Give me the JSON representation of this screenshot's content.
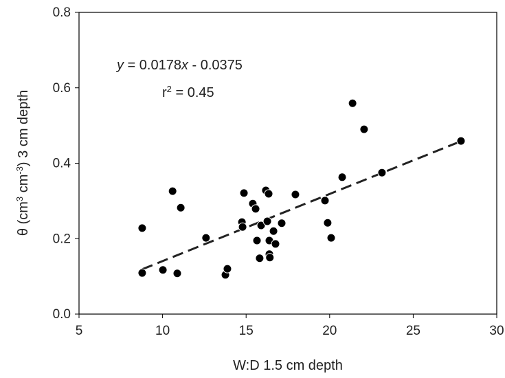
{
  "chart_data": {
    "type": "scatter",
    "x_label": "W:D 1.5 cm depth",
    "y_label_parts": [
      "θ (cm",
      "3",
      " cm",
      "-3",
      ")  3 cm depth"
    ],
    "equation_parts": [
      "y",
      " = 0.0178",
      "x",
      " - 0.0375"
    ],
    "r2_parts": [
      "r",
      "2",
      " = 0.45"
    ],
    "trendline": {
      "slope": 0.0178,
      "intercept": -0.0375
    },
    "x": [
      8.78,
      8.78,
      10.02,
      10.6,
      10.88,
      11.09,
      12.6,
      13.76,
      13.88,
      14.75,
      14.79,
      14.87,
      15.4,
      15.57,
      15.65,
      15.81,
      15.9,
      16.18,
      16.27,
      16.35,
      16.39,
      16.39,
      16.42,
      16.64,
      16.76,
      17.13,
      17.95,
      19.88,
      19.72,
      20.09,
      20.75,
      21.37,
      22.06,
      23.13,
      27.86
    ],
    "values": [
      0.228,
      0.109,
      0.117,
      0.326,
      0.108,
      0.282,
      0.202,
      0.104,
      0.12,
      0.244,
      0.231,
      0.321,
      0.293,
      0.279,
      0.195,
      0.148,
      0.235,
      0.328,
      0.246,
      0.319,
      0.195,
      0.159,
      0.15,
      0.22,
      0.186,
      0.241,
      0.317,
      0.242,
      0.301,
      0.202,
      0.363,
      0.559,
      0.49,
      0.375,
      0.459
    ],
    "color": "#000000",
    "xlim": [
      5,
      30
    ],
    "xticks": [
      5,
      10,
      15,
      20,
      25,
      30
    ],
    "ylim": [
      0,
      0.8
    ],
    "yticks": [
      {
        "value": 0,
        "label": "0.0"
      },
      0.2,
      0.4,
      0.6,
      0.8
    ]
  }
}
